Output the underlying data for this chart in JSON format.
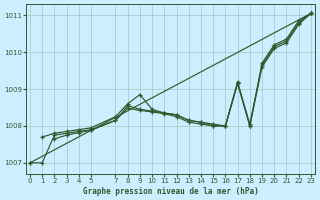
{
  "title": "Graphe pression niveau de la mer (hPa)",
  "bg_color": "#cceeff",
  "grid_color": "#aacccc",
  "line_color": "#2d5a2d",
  "ylim": [
    1006.7,
    1011.3
  ],
  "yticks": [
    1007,
    1008,
    1009,
    1010,
    1011
  ],
  "xlim": [
    -0.3,
    23.3
  ],
  "x_ticks": [
    0,
    1,
    2,
    3,
    4,
    5,
    7,
    8,
    9,
    10,
    11,
    12,
    13,
    14,
    15,
    16,
    17,
    18,
    19,
    20,
    21,
    22,
    23
  ],
  "series": [
    {
      "x": [
        0,
        1,
        2,
        3,
        4,
        5,
        7,
        8,
        9,
        10,
        11,
        12,
        13,
        14,
        15,
        16,
        17,
        18,
        19,
        20,
        21,
        22,
        23
      ],
      "y": [
        1007.0,
        1007.0,
        1007.75,
        1007.8,
        1007.85,
        1007.9,
        1008.15,
        1008.55,
        1008.45,
        1008.4,
        1008.35,
        1008.3,
        1008.15,
        1008.1,
        1008.05,
        1008.0,
        1009.15,
        1008.05,
        1009.65,
        1010.15,
        1010.3,
        1010.8,
        1011.05
      ]
    },
    {
      "x": [
        1,
        2,
        3,
        4,
        5,
        7,
        8,
        9,
        10,
        11,
        12,
        13,
        14,
        15,
        16,
        17,
        18,
        19,
        20,
        21,
        22,
        23
      ],
      "y": [
        1007.7,
        1007.8,
        1007.85,
        1007.9,
        1007.95,
        1008.25,
        1008.6,
        1008.85,
        1008.45,
        1008.35,
        1008.3,
        1008.15,
        1008.1,
        1008.0,
        1008.0,
        1009.2,
        1008.0,
        1009.7,
        1010.2,
        1010.35,
        1010.85,
        1011.05
      ]
    },
    {
      "x": [
        0,
        23
      ],
      "y": [
        1007.0,
        1011.05
      ]
    },
    {
      "x": [
        2,
        3,
        4,
        5,
        7,
        8,
        9,
        10,
        11,
        12,
        13,
        14,
        15,
        16,
        17,
        18,
        19,
        20,
        21,
        22,
        23
      ],
      "y": [
        1007.65,
        1007.75,
        1007.82,
        1007.88,
        1008.15,
        1008.48,
        1008.42,
        1008.38,
        1008.33,
        1008.25,
        1008.1,
        1008.05,
        1008.0,
        1008.0,
        1009.15,
        1008.0,
        1009.6,
        1010.1,
        1010.25,
        1010.75,
        1011.05
      ]
    }
  ],
  "marker": "+",
  "marker_size": 3.5,
  "linewidth": 0.85
}
